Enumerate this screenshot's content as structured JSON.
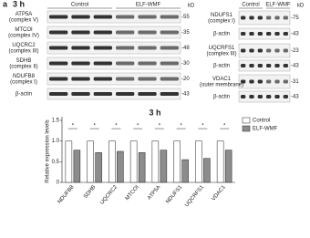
{
  "panel_label": "a",
  "panel_time": "3 h",
  "left_blot": {
    "groups": [
      "Control",
      "ELF-WMF"
    ],
    "unit": "kD",
    "rows": [
      {
        "label": [
          "ATP5A",
          "(complex V)"
        ],
        "kd": "-55"
      },
      {
        "label": [
          "MTCOI",
          "(complex IV)"
        ],
        "kd": "-35"
      },
      {
        "label": [
          "UQCRC2",
          "(complex III)"
        ],
        "kd": "-48"
      },
      {
        "label": [
          "SDHB",
          "(complex II)"
        ],
        "kd": "-30"
      },
      {
        "label": [
          "NDUFB8",
          "(complex I)"
        ],
        "kd": "-20"
      },
      {
        "label": [
          "β-actin"
        ],
        "kd": "-43"
      }
    ]
  },
  "right_blot": {
    "groups": [
      "Control",
      "ELF-WMF"
    ],
    "unit": "kD",
    "rows": [
      {
        "label": [
          "NDUFS1",
          "(complex I)"
        ],
        "kd": "-75"
      },
      {
        "label": [
          "β-actin"
        ],
        "kd": "-43"
      },
      {
        "label": [
          "UQCRFS1",
          "(complex III)"
        ],
        "kd": "-23"
      },
      {
        "label": [
          "β-actin"
        ],
        "kd": "-43"
      },
      {
        "label": [
          "VDAC1",
          "(outer membrane)"
        ],
        "kd": "-31"
      },
      {
        "label": [
          "β-actin"
        ],
        "kd": "-43"
      }
    ]
  },
  "chart_data": {
    "type": "bar",
    "title": "3 h",
    "y_label": "Relative expression levels",
    "categories": [
      "NDUFB8",
      "SDHB",
      "UQCRC2",
      "MTCOI",
      "ATP5A",
      "NDUFS1",
      "UQCRFS1",
      "VDAC1"
    ],
    "series": [
      {
        "name": "Control",
        "color": "#ffffff",
        "values": [
          1,
          1,
          1,
          1,
          1,
          1,
          1,
          1
        ]
      },
      {
        "name": "ELF-WMF",
        "color": "#8c8c8c",
        "values": [
          0.78,
          0.72,
          0.75,
          0.72,
          0.78,
          0.55,
          0.58,
          0.78
        ]
      }
    ],
    "annotations": [
      "*",
      "*",
      "*",
      "*",
      "*",
      "*",
      "*",
      "*"
    ],
    "ylim": [
      0,
      1.5
    ],
    "yticks": [
      0,
      0.5,
      {
        "value": 1,
        "label": "1.0"
      },
      1.5
    ],
    "legend": "upper right"
  }
}
